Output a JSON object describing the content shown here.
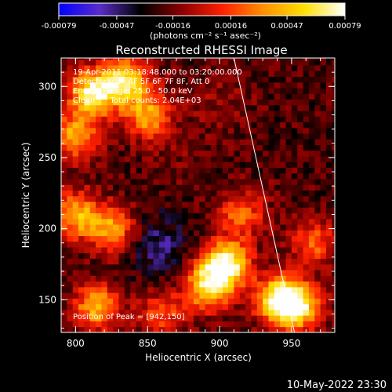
{
  "chart_data": {
    "type": "heatmap",
    "title": "Reconstructed RHESSI Image",
    "xlabel": "Heliocentric X (arcsec)",
    "ylabel": "Heliocentric Y (arcsec)",
    "xlim": [
      790,
      980
    ],
    "ylim": [
      127,
      320
    ],
    "xticks": [
      "800",
      "850",
      "900",
      "950"
    ],
    "xtick_values": [
      800,
      850,
      900,
      950
    ],
    "yticks": [
      "150",
      "200",
      "250",
      "300"
    ],
    "ytick_values": [
      150,
      200,
      250,
      300
    ],
    "colorbar": {
      "ticks": [
        "-0.00079",
        "-0.00047",
        "-0.00016",
        "0.00016",
        "0.00047",
        "0.00079"
      ],
      "tick_values": [
        -0.00079,
        -0.00047,
        -0.00016,
        0.00016,
        0.00047,
        0.00079
      ],
      "range": [
        -0.00079,
        0.00079
      ],
      "units_label": "(photons cm⁻² s⁻¹ asec⁻²)",
      "colors": [
        "#0000ff",
        "#5a2dc8",
        "#000000",
        "#8a0000",
        "#ff2000",
        "#ff9000",
        "#ffe000",
        "#ffffff"
      ]
    },
    "annotations": [
      "19-Apr-2011 03:18:48.000 to 03:20:00.000",
      "Detectors: 3F 4F 5F 6F 7F 8F, Att 0",
      "Energy Range: 25.0 - 50.0 keV",
      "Clean      Total counts: 2.04E+03"
    ],
    "peak_label": "Position of Peak = [942,150]",
    "peak": [
      942,
      150
    ],
    "limb_line": [
      [
        910,
        320
      ],
      [
        952,
        127
      ]
    ],
    "sources": [
      {
        "x": 812,
        "y": 295,
        "value": 0.0007
      },
      {
        "x": 835,
        "y": 305,
        "value": 0.0006
      },
      {
        "x": 800,
        "y": 265,
        "value": 0.00042
      },
      {
        "x": 850,
        "y": 280,
        "value": 0.0004
      },
      {
        "x": 800,
        "y": 210,
        "value": 0.00045
      },
      {
        "x": 825,
        "y": 200,
        "value": 0.0004
      },
      {
        "x": 905,
        "y": 175,
        "value": 0.00075
      },
      {
        "x": 892,
        "y": 160,
        "value": 0.0006
      },
      {
        "x": 942,
        "y": 150,
        "value": 0.00079
      },
      {
        "x": 955,
        "y": 145,
        "value": 0.0005
      },
      {
        "x": 815,
        "y": 145,
        "value": 0.00045
      },
      {
        "x": 860,
        "y": 140,
        "value": 0.0002
      },
      {
        "x": 915,
        "y": 210,
        "value": 0.00025
      },
      {
        "x": 965,
        "y": 190,
        "value": 0.00022
      },
      {
        "x": 870,
        "y": 250,
        "value": -0.00015
      },
      {
        "x": 858,
        "y": 188,
        "value": -0.00045
      },
      {
        "x": 935,
        "y": 240,
        "value": -0.0002
      },
      {
        "x": 900,
        "y": 290,
        "value": -0.0001
      }
    ]
  },
  "footer": {
    "date": "10-May-2022 23:30"
  }
}
